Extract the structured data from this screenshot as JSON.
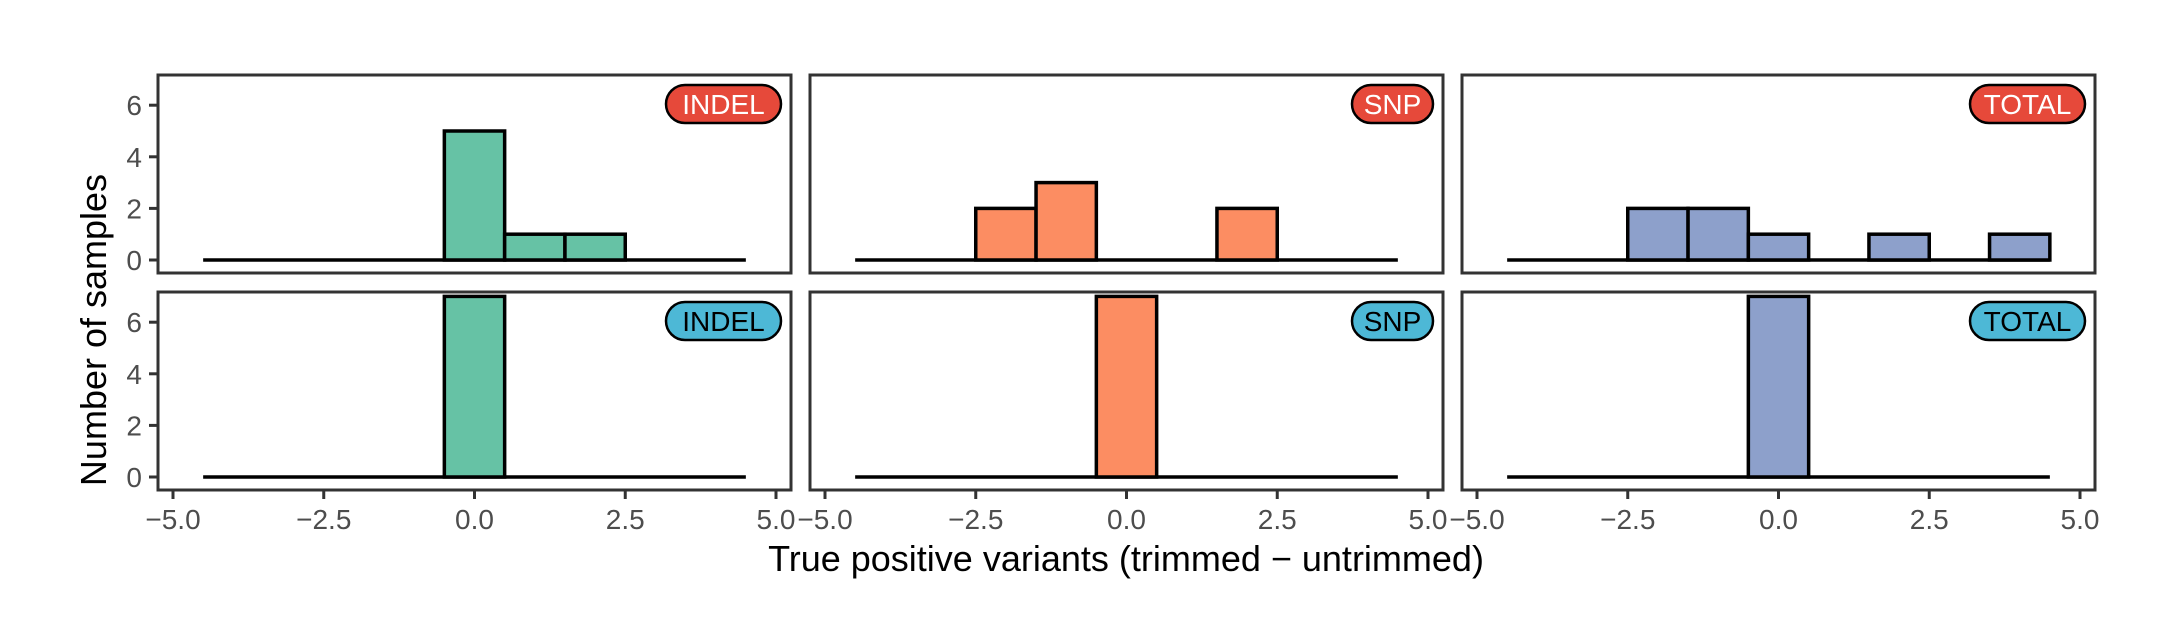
{
  "chart_data": {
    "type": "bar",
    "subtype": "faceted-histogram",
    "xlabel": "True positive variants (trimmed − untrimmed)",
    "ylabel": "Number of samples",
    "xlim": [
      -5.0,
      5.0
    ],
    "ylim": [
      0,
      7
    ],
    "x_ticks": [
      "−5.0",
      "−2.5",
      "0.0",
      "2.5",
      "5.0"
    ],
    "y_ticks": [
      "0",
      "2",
      "4",
      "6"
    ],
    "grid": false,
    "bin_width": 1,
    "baseline_range": [
      -4.5,
      4.5
    ],
    "colors": {
      "INDEL": "#66c2a5",
      "SNP": "#fc8d62",
      "TOTAL": "#8da0cb",
      "badge_top": "#e6493a",
      "badge_bottom": "#4db8d6"
    },
    "facets": [
      {
        "row": 1,
        "col": 1,
        "label": "INDEL",
        "badge": "badge_top",
        "fill": "INDEL",
        "bins": [
          {
            "x": 0,
            "count": 5
          },
          {
            "x": 1,
            "count": 1
          },
          {
            "x": 2,
            "count": 1
          }
        ]
      },
      {
        "row": 1,
        "col": 2,
        "label": "SNP",
        "badge": "badge_top",
        "fill": "SNP",
        "bins": [
          {
            "x": -2,
            "count": 2
          },
          {
            "x": -1,
            "count": 3
          },
          {
            "x": 2,
            "count": 2
          }
        ]
      },
      {
        "row": 1,
        "col": 3,
        "label": "TOTAL",
        "badge": "badge_top",
        "fill": "TOTAL",
        "bins": [
          {
            "x": -2,
            "count": 2
          },
          {
            "x": -1,
            "count": 2
          },
          {
            "x": 0,
            "count": 1
          },
          {
            "x": 2,
            "count": 1
          },
          {
            "x": 4,
            "count": 1
          }
        ]
      },
      {
        "row": 2,
        "col": 1,
        "label": "INDEL",
        "badge": "badge_bottom",
        "fill": "INDEL",
        "bins": [
          {
            "x": 0,
            "count": 7
          }
        ]
      },
      {
        "row": 2,
        "col": 2,
        "label": "SNP",
        "badge": "badge_bottom",
        "fill": "SNP",
        "bins": [
          {
            "x": 0,
            "count": 7
          }
        ]
      },
      {
        "row": 2,
        "col": 3,
        "label": "TOTAL",
        "badge": "badge_bottom",
        "fill": "TOTAL",
        "bins": [
          {
            "x": 0,
            "count": 7
          }
        ]
      }
    ]
  }
}
